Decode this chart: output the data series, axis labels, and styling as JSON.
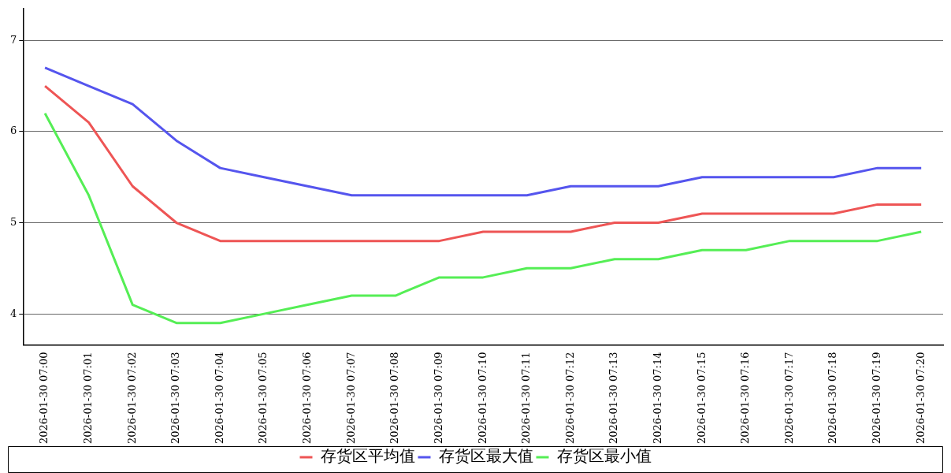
{
  "chart_data": {
    "type": "line",
    "categories": [
      "2026-01-30 07:00",
      "2026-01-30 07:01",
      "2026-01-30 07:02",
      "2026-01-30 07:03",
      "2026-01-30 07:04",
      "2026-01-30 07:05",
      "2026-01-30 07:06",
      "2026-01-30 07:07",
      "2026-01-30 07:08",
      "2026-01-30 07:09",
      "2026-01-30 07:10",
      "2026-01-30 07:11",
      "2026-01-30 07:12",
      "2026-01-30 07:13",
      "2026-01-30 07:14",
      "2026-01-30 07:15",
      "2026-01-30 07:16",
      "2026-01-30 07:17",
      "2026-01-30 07:18",
      "2026-01-30 07:19",
      "2026-01-30 07:20"
    ],
    "series": [
      {
        "name": "存货区平均值",
        "color": "#ee5555",
        "values": [
          6.5,
          6.1,
          5.4,
          5.0,
          4.8,
          4.8,
          4.8,
          4.8,
          4.8,
          4.8,
          4.9,
          4.9,
          4.9,
          5.0,
          5.0,
          5.1,
          5.1,
          5.1,
          5.1,
          5.2,
          5.2
        ]
      },
      {
        "name": "存货区最大值",
        "color": "#5555ee",
        "values": [
          6.7,
          6.5,
          6.3,
          5.9,
          5.6,
          5.5,
          5.4,
          5.3,
          5.3,
          5.3,
          5.3,
          5.3,
          5.4,
          5.4,
          5.4,
          5.5,
          5.5,
          5.5,
          5.5,
          5.6,
          5.6
        ]
      },
      {
        "name": "存货区最小值",
        "color": "#55ee55",
        "values": [
          6.2,
          5.3,
          4.1,
          3.9,
          3.9,
          4.0,
          4.1,
          4.2,
          4.2,
          4.4,
          4.4,
          4.5,
          4.5,
          4.6,
          4.6,
          4.7,
          4.7,
          4.8,
          4.8,
          4.8,
          4.9
        ]
      }
    ],
    "ylim": [
      3.66,
      7.35
    ],
    "yticks": [
      4,
      5,
      6,
      7
    ],
    "grid": "y",
    "legend": "bottom",
    "marker": "none",
    "line_style": "solid"
  }
}
